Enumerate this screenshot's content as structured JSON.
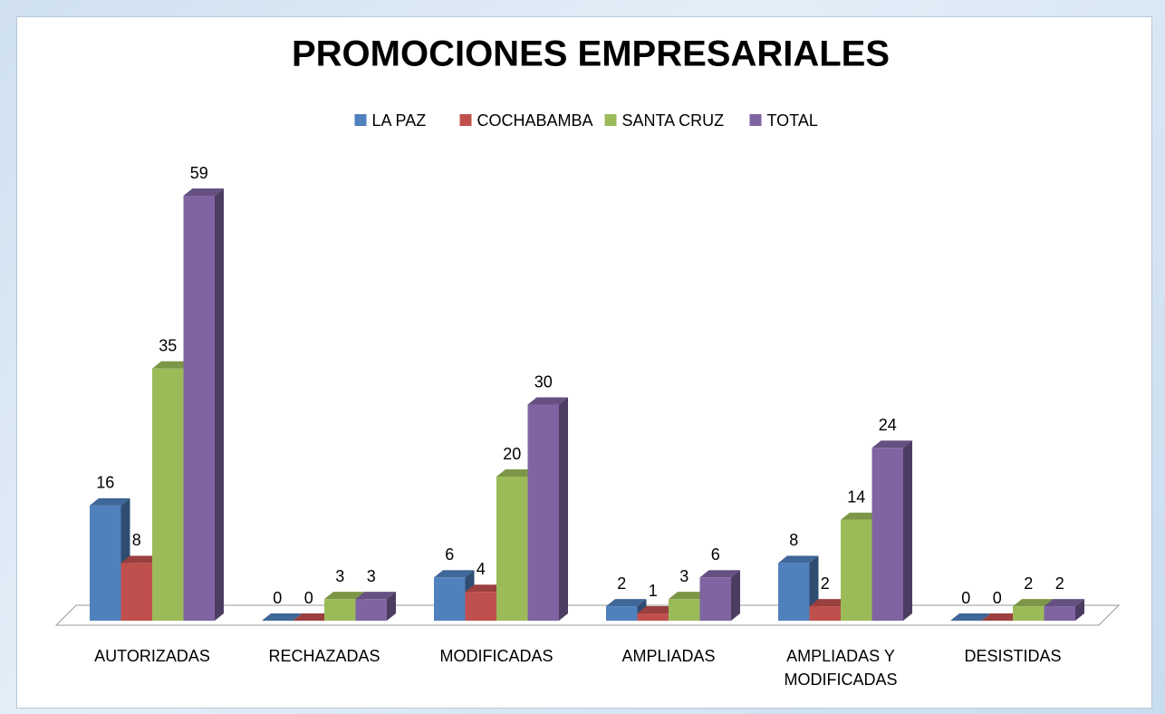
{
  "chart_data": {
    "type": "bar3d",
    "title": "PROMOCIONES EMPRESARIALES",
    "categories": [
      "AUTORIZADAS",
      "RECHAZADAS",
      "MODIFICADAS",
      "AMPLIADAS",
      "AMPLIADAS Y MODIFICADAS",
      "DESISTIDAS"
    ],
    "series": [
      {
        "name": "LA PAZ",
        "color": "#4f81bd",
        "values": [
          16,
          0,
          6,
          2,
          8,
          0
        ]
      },
      {
        "name": "COCHABAMBA",
        "color": "#c0504d",
        "values": [
          8,
          0,
          4,
          1,
          2,
          0
        ]
      },
      {
        "name": "SANTA CRUZ",
        "color": "#9bbb59",
        "values": [
          35,
          3,
          20,
          3,
          14,
          2
        ]
      },
      {
        "name": "TOTAL",
        "color": "#8064a2",
        "values": [
          59,
          3,
          30,
          6,
          24,
          2
        ]
      }
    ],
    "legend": "top"
  }
}
